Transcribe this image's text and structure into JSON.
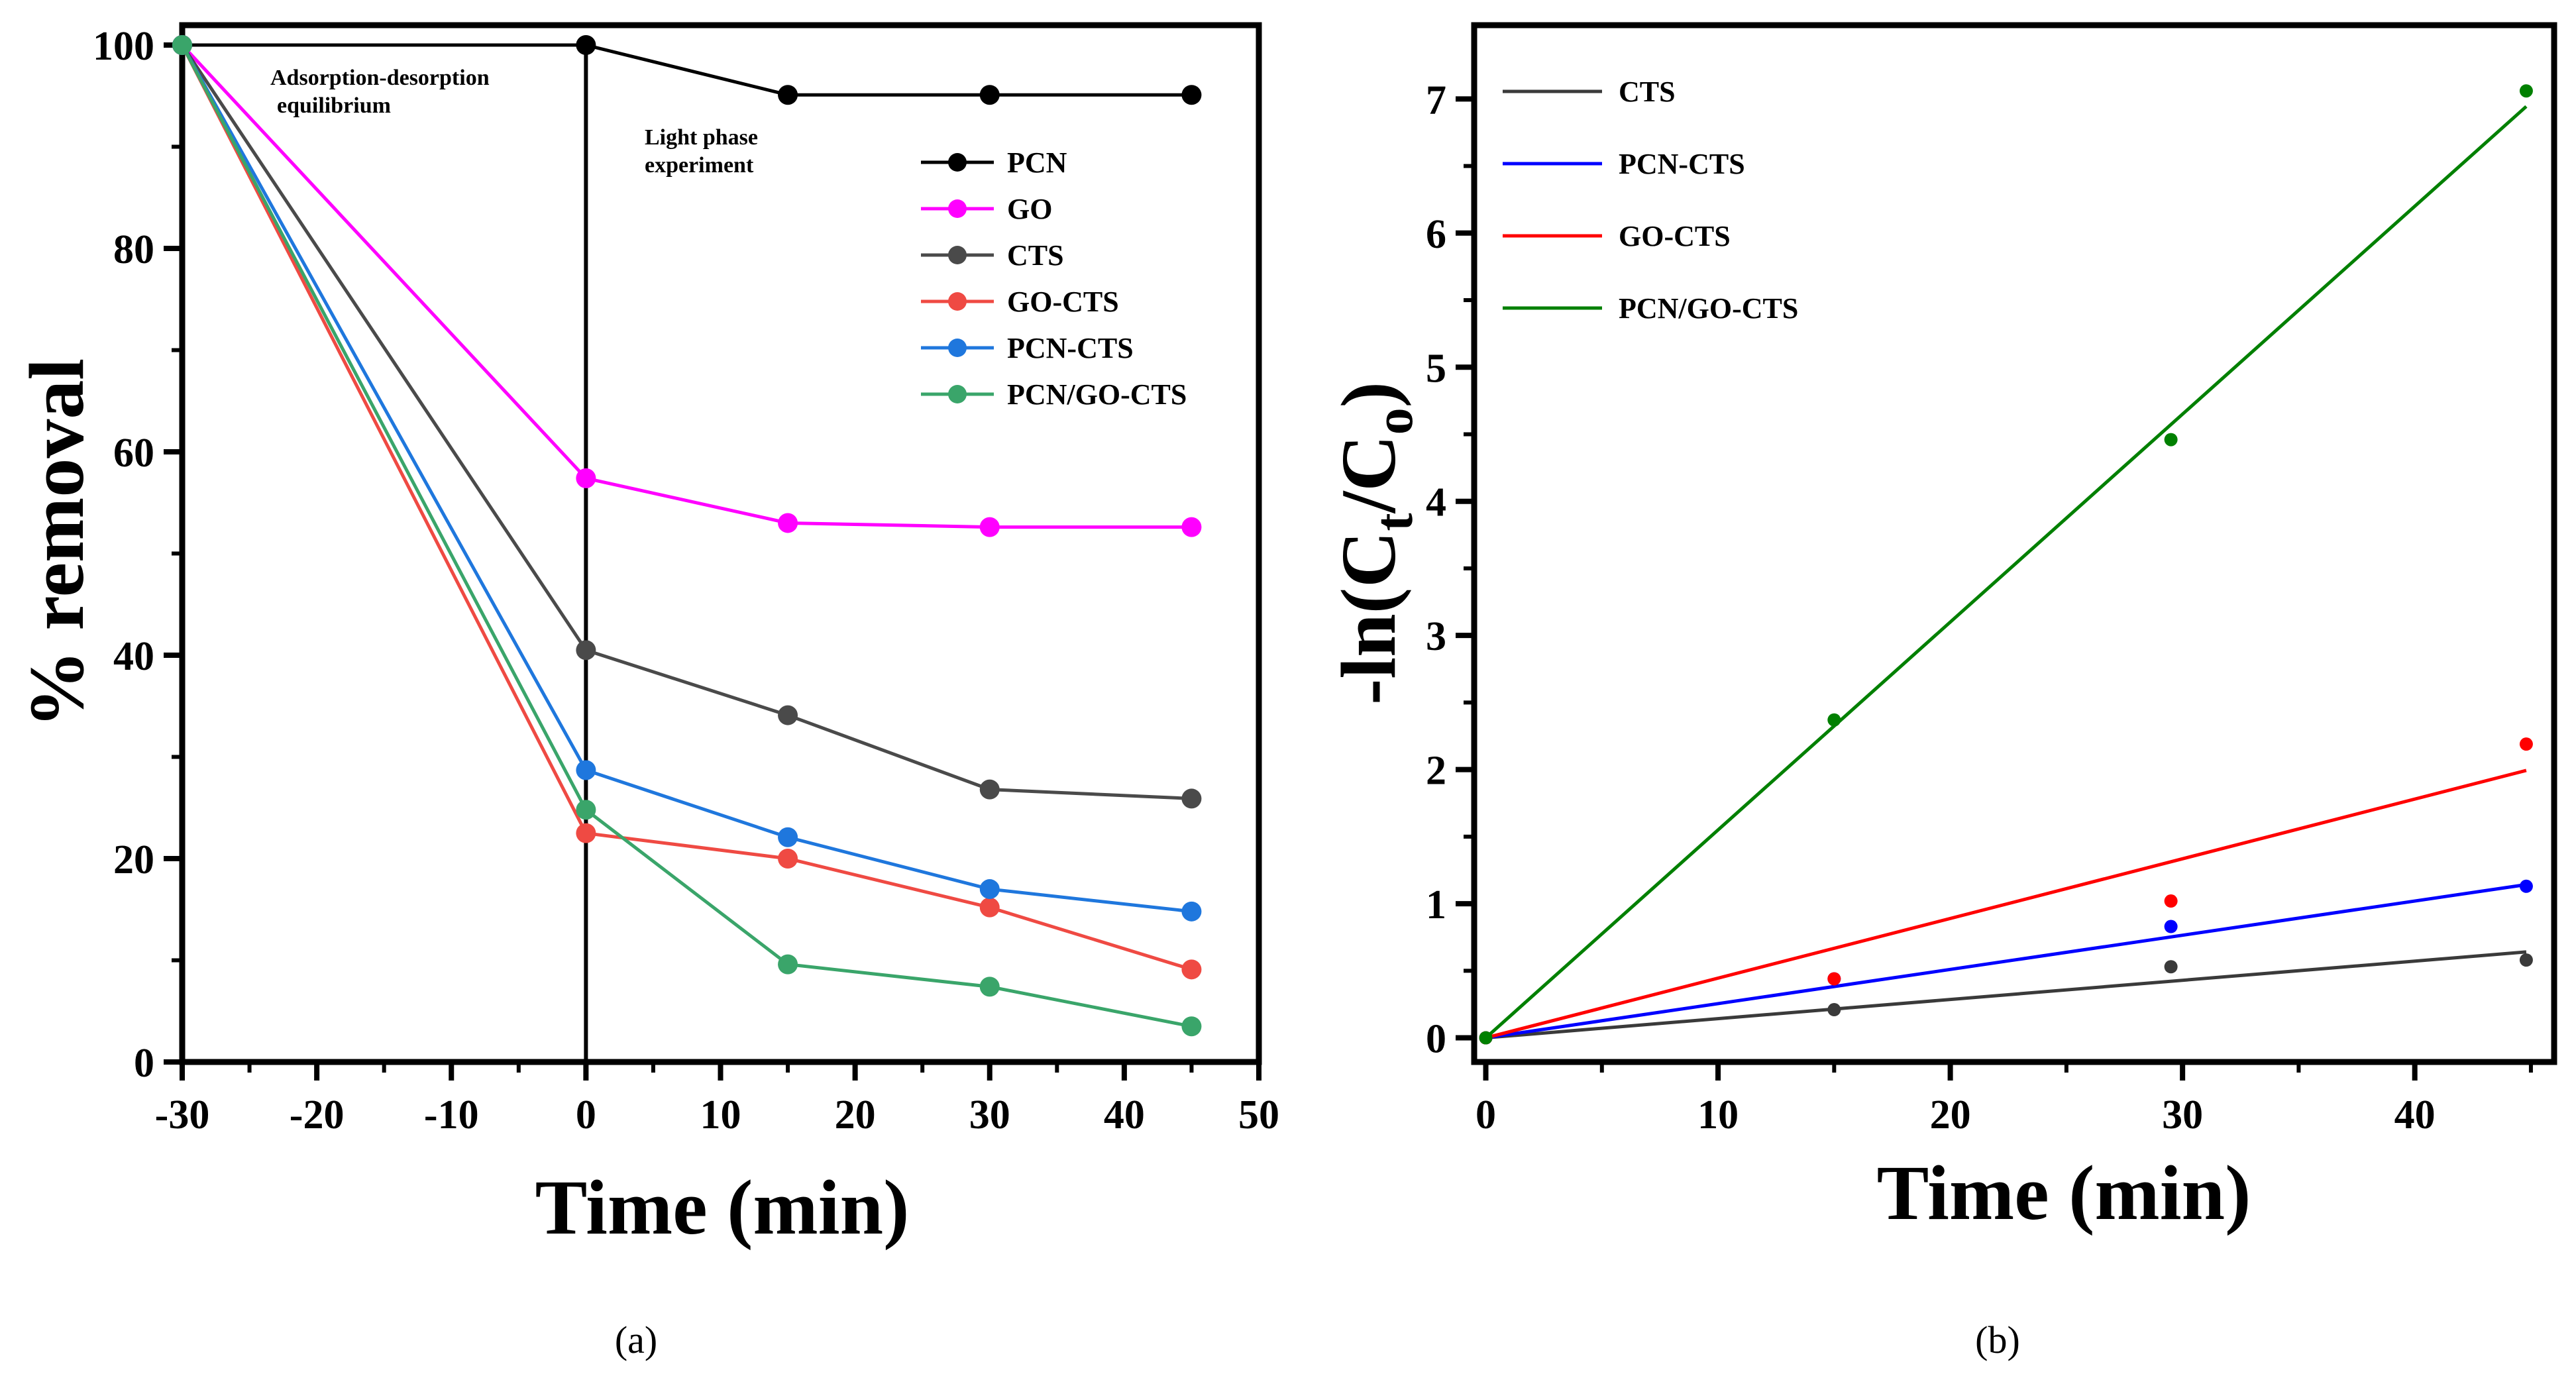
{
  "chart_data": [
    {
      "panel": "(a)",
      "type": "line",
      "xlabel": "Time (min)",
      "ylabel": "% removal",
      "xlim": [
        -30,
        50
      ],
      "ylim": [
        0,
        100
      ],
      "xticks": [
        "-30",
        "-20",
        "-10",
        "0",
        "10",
        "20",
        "30",
        "40",
        "50"
      ],
      "yticks": [
        "0",
        "20",
        "40",
        "60",
        "80",
        "100"
      ],
      "annotations": [
        {
          "text": "Adsorption-desorption",
          "x": -25,
          "y": 96.5
        },
        {
          "text": "equilibrium",
          "x": -25,
          "y": 93.2
        },
        {
          "text": "Light phase",
          "x": 5,
          "y": 90.8
        },
        {
          "text": "experiment",
          "x": 5,
          "y": 87.5
        }
      ],
      "series": [
        {
          "name": "PCN",
          "color": "#000000",
          "x": [
            -30,
            0,
            15,
            30,
            45
          ],
          "y": [
            100,
            100,
            95.1,
            95.1,
            95.1
          ]
        },
        {
          "name": "GO",
          "color": "#ff00ff",
          "x": [
            -30,
            0,
            15,
            30,
            45
          ],
          "y": [
            100,
            57.4,
            53,
            52.6,
            52.6
          ]
        },
        {
          "name": "CTS",
          "color": "#4a4a4a",
          "x": [
            -30,
            0,
            15,
            30,
            45
          ],
          "y": [
            100,
            40.5,
            34.1,
            26.8,
            25.9
          ]
        },
        {
          "name": "GO-CTS",
          "color": "#ef4a43",
          "x": [
            -30,
            0,
            15,
            30,
            45
          ],
          "y": [
            100,
            22.5,
            20,
            15.2,
            9.1
          ]
        },
        {
          "name": "PCN-CTS",
          "color": "#1f77dd",
          "x": [
            -30,
            0,
            15,
            30,
            45
          ],
          "y": [
            100,
            28.7,
            22.1,
            17,
            14.8
          ]
        },
        {
          "name": "PCN/GO-CTS",
          "color": "#3aa56a",
          "x": [
            -30,
            0,
            15,
            30,
            45
          ],
          "y": [
            100,
            24.8,
            9.6,
            7.4,
            3.5
          ]
        }
      ]
    },
    {
      "panel": "(b)",
      "type": "scatter",
      "xlabel": "Time (min)",
      "ylabel": "-ln(C",
      "ylabel_sub1": "t",
      "ylabel_mid": "/C",
      "ylabel_sub2": "o",
      "ylabel_end": ")",
      "xlim": [
        -0.5,
        46
      ],
      "ylim": [
        -0.18,
        7.55
      ],
      "xticks": [
        "0",
        "10",
        "20",
        "30",
        "40"
      ],
      "yticks": [
        "0",
        "1",
        "2",
        "3",
        "4",
        "5",
        "6",
        "7"
      ],
      "series": [
        {
          "name": "CTS",
          "color": "#3a3a3a",
          "x": [
            0,
            15,
            29.5,
            44.8
          ],
          "y": [
            0,
            0.21,
            0.53,
            0.58
          ],
          "fit_slope": 0.0143
        },
        {
          "name": "PCN-CTS",
          "color": "#0000ff",
          "x": [
            0,
            15,
            29.5,
            44.8
          ],
          "y": [
            0,
            0.44,
            0.83,
            1.13
          ],
          "fit_slope": 0.0255
        },
        {
          "name": "GO-CTS",
          "color": "#ff0000",
          "x": [
            0,
            15,
            29.5,
            44.8
          ],
          "y": [
            0,
            0.44,
            1.02,
            2.19
          ],
          "fit_slope": 0.0445
        },
        {
          "name": "PCN/GO-CTS",
          "color": "#008000",
          "x": [
            0,
            15,
            29.5,
            44.8
          ],
          "y": [
            0,
            2.37,
            4.46,
            7.06
          ],
          "fit_slope": 0.155
        }
      ]
    }
  ]
}
